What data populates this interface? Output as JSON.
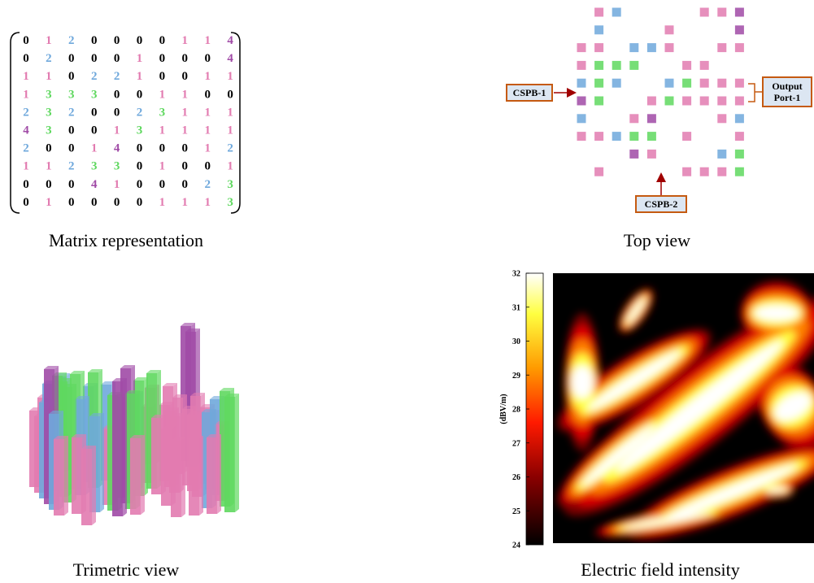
{
  "matrix": {
    "caption": "Matrix representation",
    "colors": [
      "#000000",
      "#e27bb0",
      "#6fa8dc",
      "#5fd85f",
      "#a04aa6"
    ],
    "rows": [
      [
        0,
        1,
        2,
        0,
        0,
        0,
        0,
        1,
        1,
        4
      ],
      [
        0,
        2,
        0,
        0,
        0,
        1,
        0,
        0,
        0,
        4
      ],
      [
        1,
        1,
        0,
        2,
        2,
        1,
        0,
        0,
        1,
        1
      ],
      [
        1,
        3,
        3,
        3,
        0,
        0,
        1,
        1,
        0,
        0
      ],
      [
        2,
        3,
        2,
        0,
        0,
        2,
        3,
        1,
        1,
        1
      ],
      [
        4,
        3,
        0,
        0,
        1,
        3,
        1,
        1,
        1,
        1
      ],
      [
        2,
        0,
        0,
        1,
        4,
        0,
        0,
        0,
        1,
        2
      ],
      [
        1,
        1,
        2,
        3,
        3,
        0,
        1,
        0,
        0,
        1
      ],
      [
        0,
        0,
        0,
        4,
        1,
        0,
        0,
        0,
        2,
        3
      ],
      [
        0,
        1,
        0,
        0,
        0,
        0,
        1,
        1,
        1,
        3
      ]
    ]
  },
  "top_view": {
    "caption": "Top view",
    "cspb_1": "CSPB-1",
    "output_port": "Output Port-1",
    "cspb_2": "CSPB-2"
  },
  "trimetric_view": {
    "caption": "Trimetric view"
  },
  "field": {
    "caption": "Electric field intensity",
    "colorbar_label": "(dBV/m)",
    "lim": [
      24,
      32
    ],
    "ticks": [
      24,
      25,
      26,
      27,
      28,
      29,
      30,
      31,
      32
    ]
  }
}
